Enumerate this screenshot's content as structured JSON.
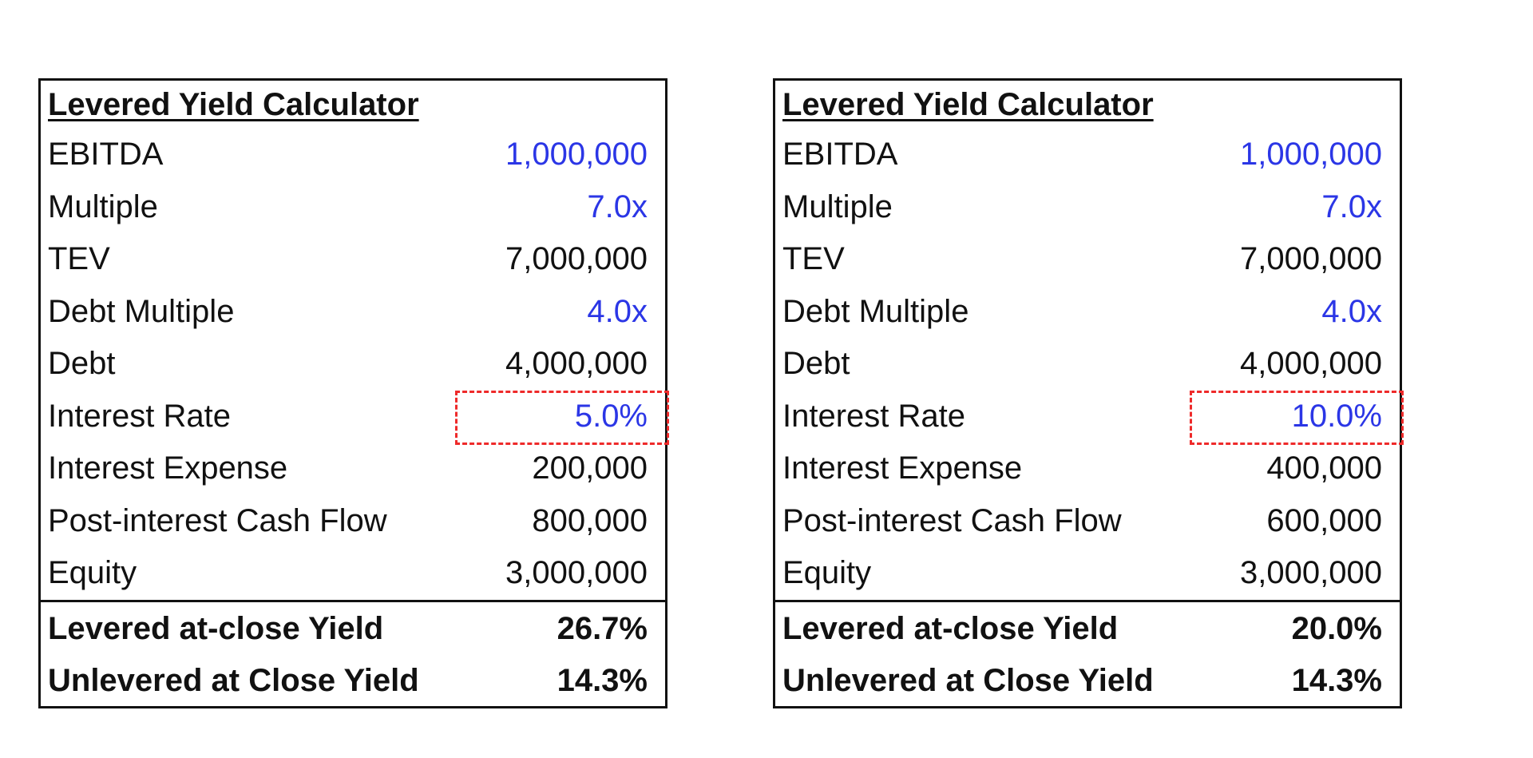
{
  "calculators": [
    {
      "title": "Levered Yield Calculator",
      "rows": {
        "ebitda": {
          "label": "EBITDA",
          "value": "1,000,000"
        },
        "multiple": {
          "label": "Multiple",
          "value": "7.0x"
        },
        "tev": {
          "label": "TEV",
          "value": "7,000,000"
        },
        "debt_multiple": {
          "label": "Debt Multiple",
          "value": "4.0x"
        },
        "debt": {
          "label": "Debt",
          "value": "4,000,000"
        },
        "interest_rate": {
          "label": "Interest Rate",
          "value": "5.0%"
        },
        "interest_expense": {
          "label": "Interest Expense",
          "value": "200,000"
        },
        "post_interest_cash_flow": {
          "label": "Post-interest Cash Flow",
          "value": "800,000"
        },
        "equity": {
          "label": "Equity",
          "value": "3,000,000"
        }
      },
      "summary": {
        "levered_yield": {
          "label": "Levered at-close Yield",
          "value": "26.7%"
        },
        "unlevered_yield": {
          "label": "Unlevered at Close Yield",
          "value": "14.3%"
        }
      }
    },
    {
      "title": "Levered Yield Calculator",
      "rows": {
        "ebitda": {
          "label": "EBITDA",
          "value": "1,000,000"
        },
        "multiple": {
          "label": "Multiple",
          "value": "7.0x"
        },
        "tev": {
          "label": "TEV",
          "value": "7,000,000"
        },
        "debt_multiple": {
          "label": "Debt Multiple",
          "value": "4.0x"
        },
        "debt": {
          "label": "Debt",
          "value": "4,000,000"
        },
        "interest_rate": {
          "label": "Interest Rate",
          "value": "10.0%"
        },
        "interest_expense": {
          "label": "Interest Expense",
          "value": "400,000"
        },
        "post_interest_cash_flow": {
          "label": "Post-interest Cash Flow",
          "value": "600,000"
        },
        "equity": {
          "label": "Equity",
          "value": "3,000,000"
        }
      },
      "summary": {
        "levered_yield": {
          "label": "Levered at-close Yield",
          "value": "20.0%"
        },
        "unlevered_yield": {
          "label": "Unlevered at Close Yield",
          "value": "14.3%"
        }
      }
    }
  ],
  "colors": {
    "input_value": "#2b36e6",
    "calculated_value": "#111111",
    "highlight_border": "#ee2a2a",
    "table_border": "#111111"
  }
}
